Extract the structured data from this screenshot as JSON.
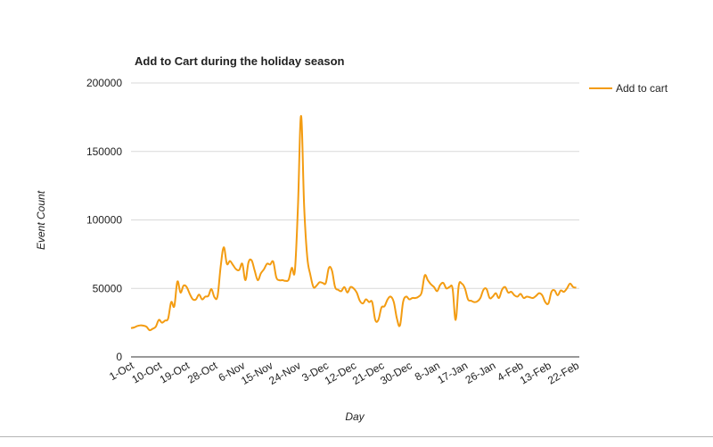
{
  "chart_data": {
    "type": "line",
    "title": "Add to Cart during the holiday season",
    "xlabel": "Day",
    "ylabel": "Event Count",
    "ylim": [
      0,
      200000
    ],
    "yticks": [
      0,
      50000,
      100000,
      150000,
      200000
    ],
    "xticks": [
      "1-Oct",
      "10-Oct",
      "19-Oct",
      "28-Oct",
      "6-Nov",
      "15-Nov",
      "24-Nov",
      "3-Dec",
      "12-Dec",
      "21-Dec",
      "30-Dec",
      "8-Jan",
      "17-Jan",
      "26-Jan",
      "4-Feb",
      "13-Feb",
      "22-Feb"
    ],
    "grid": true,
    "legend_position": "right",
    "colors": {
      "series": "#f39c12",
      "grid": "#d9d9d9",
      "text": "#222222"
    },
    "series": [
      {
        "name": "Add to cart",
        "color": "#f39c12",
        "points": [
          [
            "2016-10-01",
            21000
          ],
          [
            "2016-10-02",
            21500
          ],
          [
            "2016-10-03",
            22500
          ],
          [
            "2016-10-04",
            23000
          ],
          [
            "2016-10-05",
            22800
          ],
          [
            "2016-10-06",
            22000
          ],
          [
            "2016-10-07",
            19500
          ],
          [
            "2016-10-08",
            20500
          ],
          [
            "2016-10-09",
            22000
          ],
          [
            "2016-10-10",
            27000
          ],
          [
            "2016-10-11",
            25000
          ],
          [
            "2016-10-12",
            26500
          ],
          [
            "2016-10-13",
            28000
          ],
          [
            "2016-10-14",
            40000
          ],
          [
            "2016-10-15",
            37000
          ],
          [
            "2016-10-16",
            55000
          ],
          [
            "2016-10-17",
            47000
          ],
          [
            "2016-10-18",
            52000
          ],
          [
            "2016-10-19",
            51000
          ],
          [
            "2016-10-20",
            46000
          ],
          [
            "2016-10-21",
            42000
          ],
          [
            "2016-10-22",
            42000
          ],
          [
            "2016-10-23",
            45500
          ],
          [
            "2016-10-24",
            42000
          ],
          [
            "2016-10-25",
            44000
          ],
          [
            "2016-10-26",
            44500
          ],
          [
            "2016-10-27",
            49500
          ],
          [
            "2016-10-28",
            43500
          ],
          [
            "2016-10-29",
            44500
          ],
          [
            "2016-10-30",
            66000
          ],
          [
            "2016-10-31",
            80000
          ],
          [
            "2016-11-01",
            68000
          ],
          [
            "2016-11-02",
            70000
          ],
          [
            "2016-11-03",
            67000
          ],
          [
            "2016-11-04",
            64000
          ],
          [
            "2016-11-05",
            63500
          ],
          [
            "2016-11-06",
            68000
          ],
          [
            "2016-11-07",
            56000
          ],
          [
            "2016-11-08",
            69000
          ],
          [
            "2016-11-09",
            70500
          ],
          [
            "2016-11-10",
            63000
          ],
          [
            "2016-11-11",
            56000
          ],
          [
            "2016-11-12",
            61000
          ],
          [
            "2016-11-13",
            64000
          ],
          [
            "2016-11-14",
            68000
          ],
          [
            "2016-11-15",
            67500
          ],
          [
            "2016-11-16",
            69500
          ],
          [
            "2016-11-17",
            58000
          ],
          [
            "2016-11-18",
            56000
          ],
          [
            "2016-11-19",
            56000
          ],
          [
            "2016-11-20",
            55500
          ],
          [
            "2016-11-21",
            56500
          ],
          [
            "2016-11-22",
            65000
          ],
          [
            "2016-11-23",
            63000
          ],
          [
            "2016-11-24",
            110000
          ],
          [
            "2016-11-25",
            176000
          ],
          [
            "2016-11-26",
            110000
          ],
          [
            "2016-11-27",
            73000
          ],
          [
            "2016-11-28",
            60000
          ],
          [
            "2016-11-29",
            51000
          ],
          [
            "2016-11-30",
            52000
          ],
          [
            "2016-12-01",
            54500
          ],
          [
            "2016-12-02",
            54000
          ],
          [
            "2016-12-03",
            54000
          ],
          [
            "2016-12-04",
            65000
          ],
          [
            "2016-12-05",
            63000
          ],
          [
            "2016-12-06",
            51000
          ],
          [
            "2016-12-07",
            49000
          ],
          [
            "2016-12-08",
            48000
          ],
          [
            "2016-12-09",
            51000
          ],
          [
            "2016-12-10",
            47000
          ],
          [
            "2016-12-11",
            51000
          ],
          [
            "2016-12-12",
            50000
          ],
          [
            "2016-12-13",
            47000
          ],
          [
            "2016-12-14",
            41000
          ],
          [
            "2016-12-15",
            39000
          ],
          [
            "2016-12-16",
            42000
          ],
          [
            "2016-12-17",
            40000
          ],
          [
            "2016-12-18",
            40000
          ],
          [
            "2016-12-19",
            27000
          ],
          [
            "2016-12-20",
            27000
          ],
          [
            "2016-12-21",
            36000
          ],
          [
            "2016-12-22",
            37000
          ],
          [
            "2016-12-23",
            42000
          ],
          [
            "2016-12-24",
            44000
          ],
          [
            "2016-12-25",
            40000
          ],
          [
            "2016-12-26",
            28000
          ],
          [
            "2016-12-27",
            23000
          ],
          [
            "2016-12-28",
            40000
          ],
          [
            "2016-12-29",
            44000
          ],
          [
            "2016-12-30",
            42000
          ],
          [
            "2016-12-31",
            43000
          ],
          [
            "2017-01-01",
            43000
          ],
          [
            "2017-01-02",
            44000
          ],
          [
            "2017-01-03",
            47000
          ],
          [
            "2017-01-04",
            59500
          ],
          [
            "2017-01-05",
            56000
          ],
          [
            "2017-01-06",
            53000
          ],
          [
            "2017-01-07",
            51000
          ],
          [
            "2017-01-08",
            48000
          ],
          [
            "2017-01-09",
            52500
          ],
          [
            "2017-01-10",
            54000
          ],
          [
            "2017-01-11",
            50000
          ],
          [
            "2017-01-12",
            51000
          ],
          [
            "2017-01-13",
            50000
          ],
          [
            "2017-01-14",
            27000
          ],
          [
            "2017-01-15",
            52000
          ],
          [
            "2017-01-16",
            53500
          ],
          [
            "2017-01-17",
            50000
          ],
          [
            "2017-01-18",
            42000
          ],
          [
            "2017-01-19",
            41000
          ],
          [
            "2017-01-20",
            40000
          ],
          [
            "2017-01-21",
            40500
          ],
          [
            "2017-01-22",
            43000
          ],
          [
            "2017-01-23",
            49000
          ],
          [
            "2017-01-24",
            49500
          ],
          [
            "2017-01-25",
            43000
          ],
          [
            "2017-01-26",
            44000
          ],
          [
            "2017-01-27",
            46500
          ],
          [
            "2017-01-28",
            43000
          ],
          [
            "2017-01-29",
            49000
          ],
          [
            "2017-01-30",
            51000
          ],
          [
            "2017-01-31",
            47000
          ],
          [
            "2017-02-01",
            47500
          ],
          [
            "2017-02-02",
            45000
          ],
          [
            "2017-02-03",
            44000
          ],
          [
            "2017-02-04",
            46000
          ],
          [
            "2017-02-05",
            43000
          ],
          [
            "2017-02-06",
            44000
          ],
          [
            "2017-02-07",
            43500
          ],
          [
            "2017-02-08",
            43000
          ],
          [
            "2017-02-09",
            44500
          ],
          [
            "2017-02-10",
            46500
          ],
          [
            "2017-02-11",
            45000
          ],
          [
            "2017-02-12",
            40000
          ],
          [
            "2017-02-13",
            39000
          ],
          [
            "2017-02-14",
            47500
          ],
          [
            "2017-02-15",
            48500
          ],
          [
            "2017-02-16",
            45000
          ],
          [
            "2017-02-17",
            48500
          ],
          [
            "2017-02-18",
            47500
          ],
          [
            "2017-02-19",
            50000
          ],
          [
            "2017-02-20",
            53500
          ],
          [
            "2017-02-21",
            51000
          ],
          [
            "2017-02-22",
            50500
          ]
        ]
      }
    ]
  }
}
